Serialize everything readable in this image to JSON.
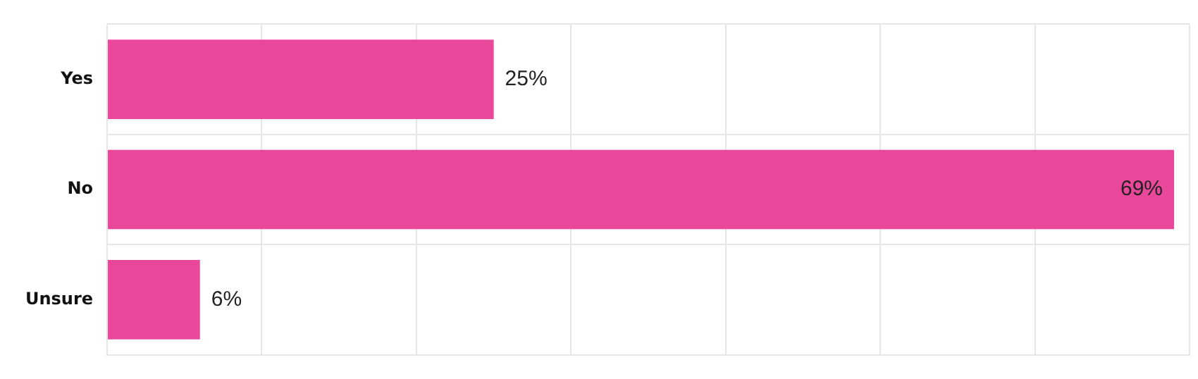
{
  "chart_data": {
    "type": "bar",
    "orientation": "horizontal",
    "categories": [
      "Yes",
      "No",
      "Unsure"
    ],
    "values": [
      25,
      69,
      6
    ],
    "value_labels": [
      "25%",
      "69%",
      "6%"
    ],
    "color": "#e8479a",
    "xlim": [
      0,
      70
    ],
    "xticks": [
      {
        "value": 0,
        "label": null
      },
      {
        "value": 10,
        "label": null
      },
      {
        "value": 20,
        "label": null
      },
      {
        "value": 30,
        "label": null
      },
      {
        "value": 40,
        "label": null
      },
      {
        "value": 50,
        "label": null
      },
      {
        "value": 60,
        "label": null
      },
      {
        "value": 70,
        "label": null
      }
    ],
    "tick_labels": "y",
    "grid": true,
    "legend": false
  }
}
